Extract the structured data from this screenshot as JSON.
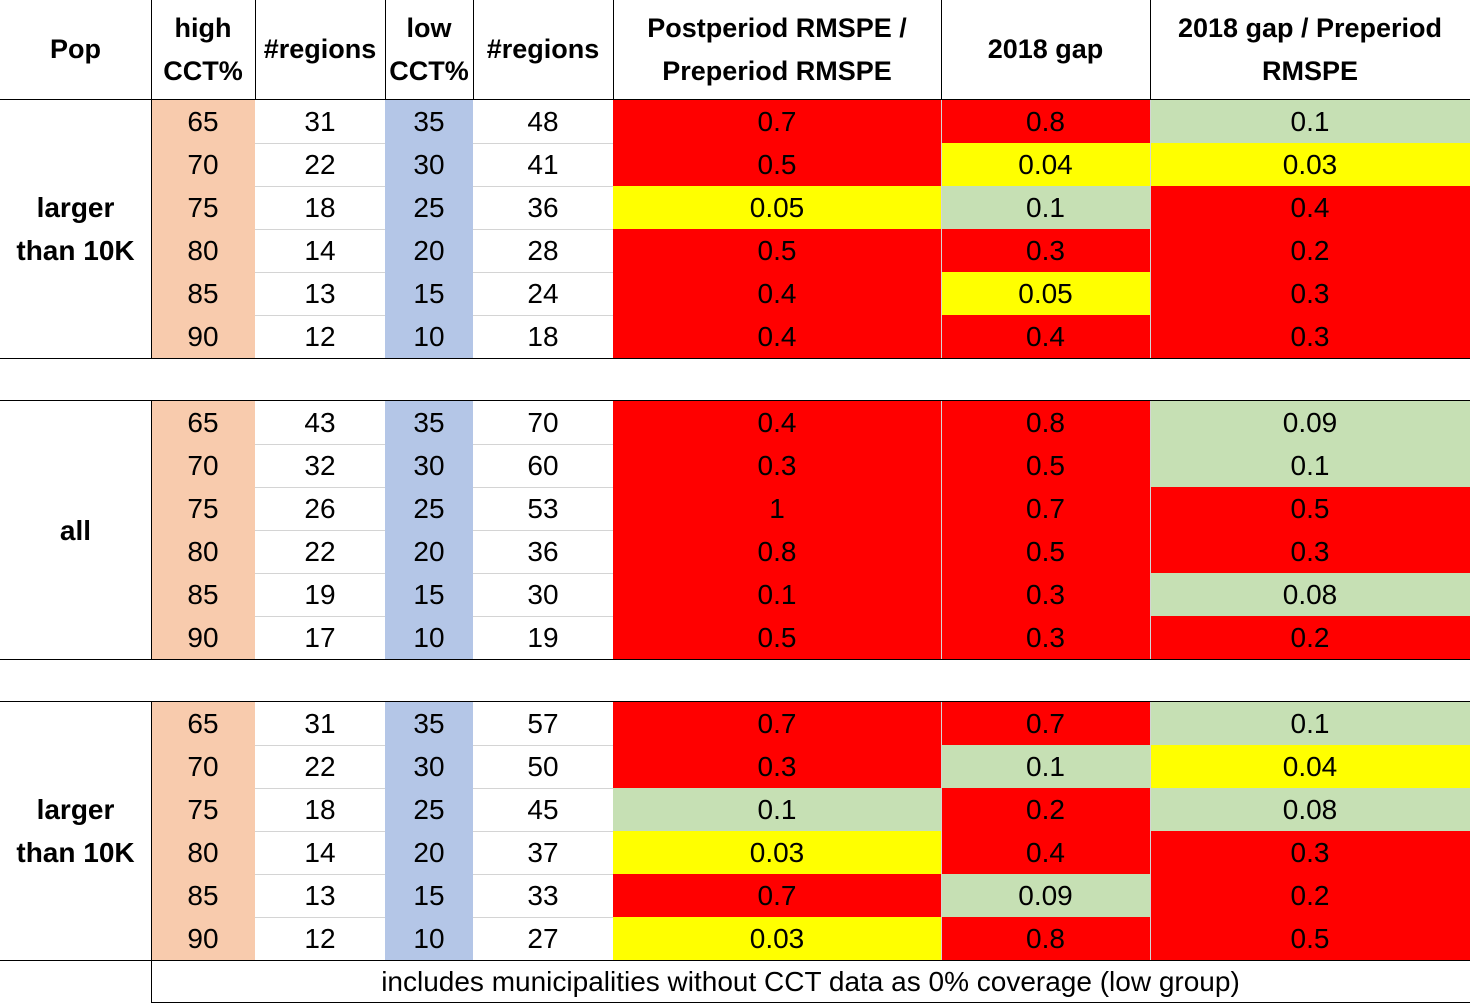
{
  "columns": [
    "Pop",
    [
      "high",
      "CCT%"
    ],
    "#regions",
    [
      "low",
      "CCT%"
    ],
    "#regions",
    [
      "Postperiod  RMSPE  /",
      "Preperiod RMSPE"
    ],
    "2018 gap",
    [
      "2018 gap / Preperiod",
      "RMSPE"
    ]
  ],
  "colors": {
    "high": "#f8cbad",
    "low": "#b4c6e7",
    "red": "#ff0000",
    "yellow": "#ffff00",
    "green": "#c6e0b4",
    "white": "#ffffff"
  },
  "groups": [
    {
      "pop": [
        "larger",
        "than 10K"
      ],
      "rows": [
        {
          "high": "65",
          "hreg": "31",
          "low": "35",
          "lreg": "48",
          "rmspe": "0.7",
          "rmspe_c": "red",
          "gap": "0.8",
          "gap_c": "red",
          "ratio": "0.1",
          "ratio_c": "green"
        },
        {
          "high": "70",
          "hreg": "22",
          "low": "30",
          "lreg": "41",
          "rmspe": "0.5",
          "rmspe_c": "red",
          "gap": "0.04",
          "gap_c": "yellow",
          "ratio": "0.03",
          "ratio_c": "yellow"
        },
        {
          "high": "75",
          "hreg": "18",
          "low": "25",
          "lreg": "36",
          "rmspe": "0.05",
          "rmspe_c": "yellow",
          "gap": "0.1",
          "gap_c": "green",
          "ratio": "0.4",
          "ratio_c": "red"
        },
        {
          "high": "80",
          "hreg": "14",
          "low": "20",
          "lreg": "28",
          "rmspe": "0.5",
          "rmspe_c": "red",
          "gap": "0.3",
          "gap_c": "red",
          "ratio": "0.2",
          "ratio_c": "red"
        },
        {
          "high": "85",
          "hreg": "13",
          "low": "15",
          "lreg": "24",
          "rmspe": "0.4",
          "rmspe_c": "red",
          "gap": "0.05",
          "gap_c": "yellow",
          "ratio": "0.3",
          "ratio_c": "red"
        },
        {
          "high": "90",
          "hreg": "12",
          "low": "10",
          "lreg": "18",
          "rmspe": "0.4",
          "rmspe_c": "red",
          "gap": "0.4",
          "gap_c": "red",
          "ratio": "0.3",
          "ratio_c": "red"
        }
      ]
    },
    {
      "pop": [
        "all"
      ],
      "rows": [
        {
          "high": "65",
          "hreg": "43",
          "low": "35",
          "lreg": "70",
          "rmspe": "0.4",
          "rmspe_c": "red",
          "gap": "0.8",
          "gap_c": "red",
          "ratio": "0.09",
          "ratio_c": "green"
        },
        {
          "high": "70",
          "hreg": "32",
          "low": "30",
          "lreg": "60",
          "rmspe": "0.3",
          "rmspe_c": "red",
          "gap": "0.5",
          "gap_c": "red",
          "ratio": "0.1",
          "ratio_c": "green"
        },
        {
          "high": "75",
          "hreg": "26",
          "low": "25",
          "lreg": "53",
          "rmspe": "1",
          "rmspe_c": "red",
          "gap": "0.7",
          "gap_c": "red",
          "ratio": "0.5",
          "ratio_c": "red"
        },
        {
          "high": "80",
          "hreg": "22",
          "low": "20",
          "lreg": "36",
          "rmspe": "0.8",
          "rmspe_c": "red",
          "gap": "0.5",
          "gap_c": "red",
          "ratio": "0.3",
          "ratio_c": "red"
        },
        {
          "high": "85",
          "hreg": "19",
          "low": "15",
          "lreg": "30",
          "rmspe": "0.1",
          "rmspe_c": "red",
          "gap": "0.3",
          "gap_c": "red",
          "ratio": "0.08",
          "ratio_c": "green"
        },
        {
          "high": "90",
          "hreg": "17",
          "low": "10",
          "lreg": "19",
          "rmspe": "0.5",
          "rmspe_c": "red",
          "gap": "0.3",
          "gap_c": "red",
          "ratio": "0.2",
          "ratio_c": "red"
        }
      ]
    },
    {
      "pop": [
        "larger",
        "than 10K"
      ],
      "rows": [
        {
          "high": "65",
          "hreg": "31",
          "low": "35",
          "lreg": "57",
          "rmspe": "0.7",
          "rmspe_c": "red",
          "gap": "0.7",
          "gap_c": "red",
          "ratio": "0.1",
          "ratio_c": "green"
        },
        {
          "high": "70",
          "hreg": "22",
          "low": "30",
          "lreg": "50",
          "rmspe": "0.3",
          "rmspe_c": "red",
          "gap": "0.1",
          "gap_c": "green",
          "ratio": "0.04",
          "ratio_c": "yellow"
        },
        {
          "high": "75",
          "hreg": "18",
          "low": "25",
          "lreg": "45",
          "rmspe": "0.1",
          "rmspe_c": "green",
          "gap": "0.2",
          "gap_c": "red",
          "ratio": "0.08",
          "ratio_c": "green"
        },
        {
          "high": "80",
          "hreg": "14",
          "low": "20",
          "lreg": "37",
          "rmspe": "0.03",
          "rmspe_c": "yellow",
          "gap": "0.4",
          "gap_c": "red",
          "ratio": "0.3",
          "ratio_c": "red"
        },
        {
          "high": "85",
          "hreg": "13",
          "low": "15",
          "lreg": "33",
          "rmspe": "0.7",
          "rmspe_c": "red",
          "gap": "0.09",
          "gap_c": "green",
          "ratio": "0.2",
          "ratio_c": "red"
        },
        {
          "high": "90",
          "hreg": "12",
          "low": "10",
          "lreg": "27",
          "rmspe": "0.03",
          "rmspe_c": "yellow",
          "gap": "0.8",
          "gap_c": "red",
          "ratio": "0.5",
          "ratio_c": "red"
        }
      ]
    }
  ],
  "note": "includes municipalities without CCT data as 0% coverage (low group)"
}
